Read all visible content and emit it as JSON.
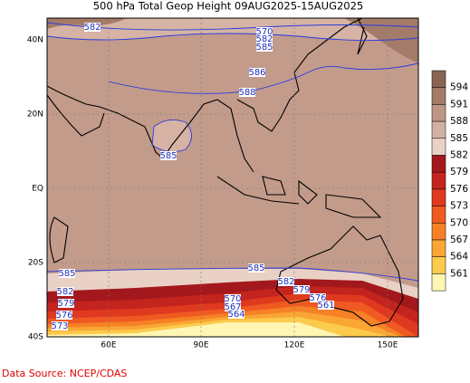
{
  "title": "500 hPa Total Geop Height 09AUG2025-15AUG2025",
  "lon_labels": [
    "60E",
    "90E",
    "120E",
    "150E"
  ],
  "lat_labels": [
    "40N",
    "20N",
    "EQ",
    "20S",
    "40S"
  ],
  "colorbar_levels": [
    594,
    591,
    588,
    585,
    582,
    579,
    576,
    573,
    570,
    567,
    564,
    561
  ],
  "colorbar_colors": [
    "#8a6553",
    "#a47b69",
    "#bd9685",
    "#d3b1a2",
    "#e9d1c5",
    "#a3181c",
    "#c4241e",
    "#df3a1f",
    "#ef5a22",
    "#f68126",
    "#f9a634",
    "#fcca4c",
    "#fff6b4"
  ],
  "contour_labels": [
    "582",
    "570",
    "582",
    "585",
    "586",
    "588",
    "585",
    "585",
    "585",
    "582",
    "579",
    "576",
    "573",
    "582",
    "579",
    "576",
    "570",
    "567",
    "564",
    "561"
  ],
  "source": "Data Source:  NCEP/CDAS"
}
